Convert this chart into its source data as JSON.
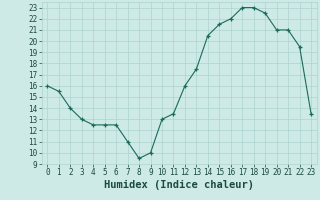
{
  "x": [
    0,
    1,
    2,
    3,
    4,
    5,
    6,
    7,
    8,
    9,
    10,
    11,
    12,
    13,
    14,
    15,
    16,
    17,
    18,
    19,
    20,
    21,
    22,
    23
  ],
  "y": [
    16,
    15.5,
    14,
    13,
    12.5,
    12.5,
    12.5,
    11,
    9.5,
    10,
    13,
    13.5,
    16,
    17.5,
    20.5,
    21.5,
    22,
    23,
    23,
    22.5,
    21,
    21,
    19.5,
    13.5
  ],
  "xlabel": "Humidex (Indice chaleur)",
  "ylim": [
    9,
    23.5
  ],
  "xlim": [
    -0.5,
    23.5
  ],
  "yticks": [
    9,
    10,
    11,
    12,
    13,
    14,
    15,
    16,
    17,
    18,
    19,
    20,
    21,
    22,
    23
  ],
  "xticks": [
    0,
    1,
    2,
    3,
    4,
    5,
    6,
    7,
    8,
    9,
    10,
    11,
    12,
    13,
    14,
    15,
    16,
    17,
    18,
    19,
    20,
    21,
    22,
    23
  ],
  "line_color": "#1a6b5a",
  "marker": "+",
  "bg_color": "#ceeae7",
  "grid_color": "#aed4d0",
  "tick_label_color": "#1a4a40",
  "xlabel_color": "#1a4a40",
  "tick_fontsize": 5.5,
  "xlabel_fontsize": 7.5
}
